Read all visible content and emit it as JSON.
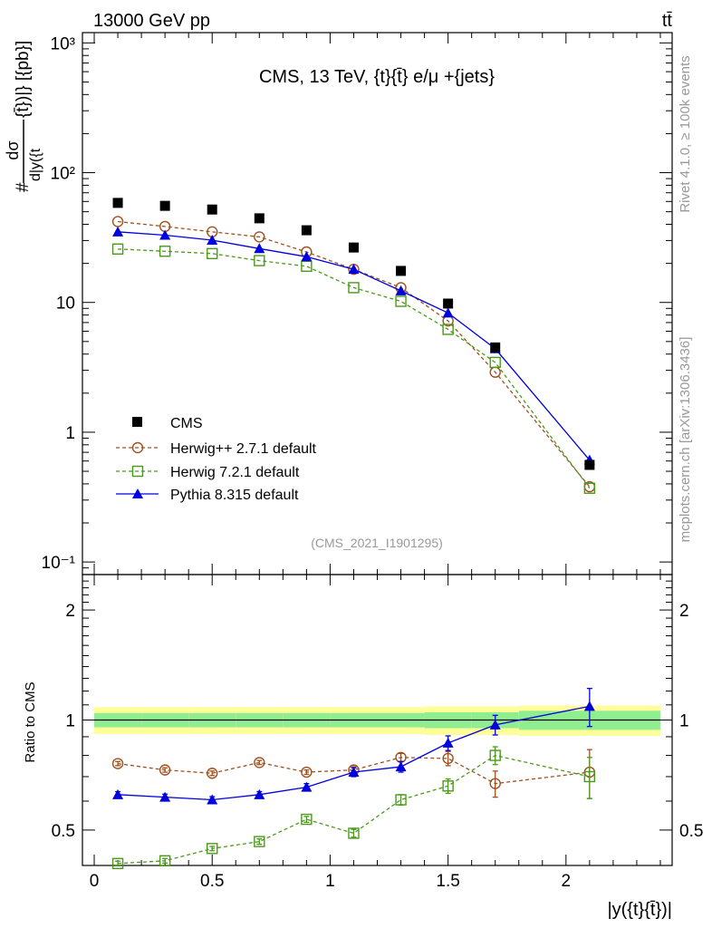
{
  "header": {
    "energy_label": "13000 GeV pp",
    "process_label": "tt̄",
    "plot_title": "CMS, 13 TeV, {t}{t̄} e/μ +{jets}",
    "analysis_id": "(CMS_2021_I1901295)",
    "rivet_label": "Rivet 4.1.0, ≥ 100k events",
    "mcplots_label": "mcplots.cern.ch [arXiv:1306.3436]"
  },
  "axes": {
    "ylabel_main": "#dσ/d|y({t}{t̄})| [{pb}]",
    "ylabel_main_prefix": "#",
    "ylabel_main_numer": "dσ",
    "ylabel_main_denom": "d|y({t",
    "ylabel_main_suffix": "{t̄})|} [{pb}]",
    "ylabel_ratio": "Ratio to CMS",
    "xlabel": "|y({t}{t̄})|",
    "main_yticks": [
      "10⁻¹",
      "1",
      "10",
      "10²",
      "10³"
    ],
    "ratio_yticks": [
      "0.5",
      "1",
      "2"
    ],
    "xticks": [
      "0",
      "0.5",
      "1",
      "1.5",
      "2"
    ]
  },
  "legend": {
    "cms": "CMS",
    "herwigpp": "Herwig++ 2.7.1 default",
    "herwig7": "Herwig 7.2.1 default",
    "pythia": "Pythia 8.315 default"
  },
  "colors": {
    "cms": "#000000",
    "herwigpp": "#a0501e",
    "herwig7": "#4a9a1a",
    "pythia": "#0000dd",
    "band_inner": "#90ee90",
    "band_outer": "#ffff99"
  },
  "chart_data": {
    "type": "line",
    "main": {
      "scale": "log",
      "ylim": [
        0.08,
        1200
      ],
      "xlim": [
        -0.05,
        2.45
      ],
      "x": [
        0.1,
        0.3,
        0.5,
        0.7,
        0.9,
        1.1,
        1.3,
        1.5,
        1.7,
        2.1
      ],
      "series": [
        {
          "name": "CMS",
          "key": "cms",
          "marker": "square-filled",
          "line": "none",
          "values": [
            58.5,
            55.5,
            52.0,
            44.5,
            36.0,
            26.5,
            17.5,
            9.8,
            4.5,
            0.56
          ]
        },
        {
          "name": "Herwig++ 2.7.1 default",
          "key": "herwigpp",
          "marker": "circle-open",
          "line": "dashed",
          "values": [
            42.0,
            38.5,
            35.0,
            32.0,
            24.5,
            18.0,
            13.0,
            7.2,
            2.9,
            0.38
          ]
        },
        {
          "name": "Herwig 7.2.1 default",
          "key": "herwig7",
          "marker": "square-open",
          "line": "dashed",
          "values": [
            25.8,
            24.8,
            23.8,
            21.0,
            19.0,
            13.0,
            10.2,
            6.2,
            3.45,
            0.37
          ]
        },
        {
          "name": "Pythia 8.315 default",
          "key": "pythia",
          "marker": "triangle-filled",
          "line": "solid",
          "values": [
            35.0,
            33.0,
            30.2,
            26.0,
            22.5,
            18.0,
            12.3,
            8.3,
            4.4,
            0.61
          ]
        }
      ]
    },
    "ratio": {
      "scale": "log",
      "ylim": [
        0.4,
        2.5
      ],
      "x": [
        0.1,
        0.3,
        0.5,
        0.7,
        0.9,
        1.1,
        1.3,
        1.5,
        1.7,
        2.1
      ],
      "band_edges": [
        0.0,
        0.2,
        0.4,
        0.6,
        0.8,
        1.0,
        1.2,
        1.4,
        1.6,
        1.8,
        2.4
      ],
      "band_inner": [
        0.045,
        0.045,
        0.045,
        0.045,
        0.045,
        0.045,
        0.045,
        0.05,
        0.05,
        0.06
      ],
      "band_outer": [
        0.085,
        0.085,
        0.085,
        0.085,
        0.085,
        0.085,
        0.085,
        0.09,
        0.09,
        0.095
      ],
      "series": [
        {
          "name": "Herwig++ 2.7.1 default",
          "key": "herwigpp",
          "marker": "circle-open",
          "line": "dashed",
          "values": [
            0.76,
            0.73,
            0.715,
            0.765,
            0.72,
            0.73,
            0.79,
            0.785,
            0.67,
            0.72
          ],
          "errors": [
            0.01,
            0.01,
            0.01,
            0.01,
            0.01,
            0.015,
            0.02,
            0.035,
            0.055,
            0.11
          ]
        },
        {
          "name": "Herwig 7.2.1 default",
          "key": "herwig7",
          "marker": "square-open",
          "line": "dashed",
          "values": [
            0.405,
            0.412,
            0.445,
            0.465,
            0.535,
            0.49,
            0.605,
            0.66,
            0.8,
            0.7
          ],
          "errors": [
            0.006,
            0.006,
            0.006,
            0.008,
            0.01,
            0.012,
            0.02,
            0.03,
            0.045,
            0.09
          ]
        },
        {
          "name": "Pythia 8.315 default",
          "key": "pythia",
          "marker": "triangle-filled",
          "line": "solid",
          "values": [
            0.625,
            0.615,
            0.605,
            0.625,
            0.655,
            0.72,
            0.745,
            0.865,
            0.97,
            1.09
          ],
          "errors": [
            0.012,
            0.012,
            0.012,
            0.012,
            0.015,
            0.02,
            0.025,
            0.04,
            0.06,
            0.13
          ]
        }
      ]
    }
  }
}
